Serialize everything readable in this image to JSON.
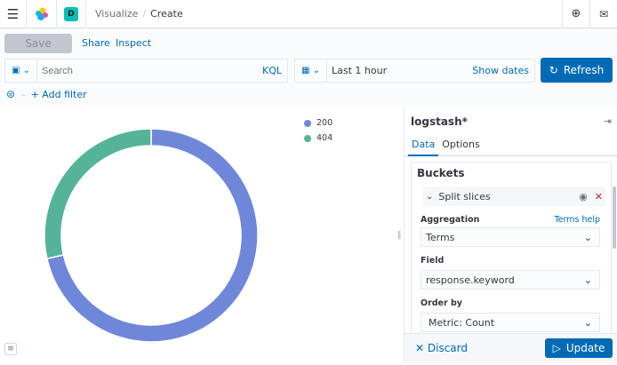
{
  "header": {
    "breadcrumb": [
      "Visualize",
      "Create"
    ],
    "space_initial": "D",
    "space_color": "#00bfb3"
  },
  "toolbar": {
    "save_label": "Save",
    "share_label": "Share",
    "inspect_label": "Inspect"
  },
  "query": {
    "placeholder": "Search",
    "language": "KQL"
  },
  "time": {
    "range": "Last 1 hour",
    "show_dates": "Show dates",
    "refresh_label": "Refresh"
  },
  "filter": {
    "add_label": "+ Add filter"
  },
  "chart_data": {
    "type": "pie",
    "donut": true,
    "categories": [
      "200",
      "404"
    ],
    "values": [
      71.5,
      28.5
    ],
    "colors": [
      "#6f87d8",
      "#54b399"
    ],
    "legend": [
      "200",
      "404"
    ],
    "legend_position": "top-right"
  },
  "sidebar": {
    "index_pattern": "logstash*",
    "tabs": [
      "Data",
      "Options"
    ],
    "section": "Buckets",
    "bucket_title": "Split slices",
    "aggregation_label": "Aggregation",
    "aggregation_help": "Terms help",
    "aggregation_value": "Terms",
    "field_label": "Field",
    "field_value": "response.keyword",
    "order_label": "Order by",
    "order_value": "Metric: Count",
    "discard_label": "Discard",
    "update_label": "Update"
  }
}
